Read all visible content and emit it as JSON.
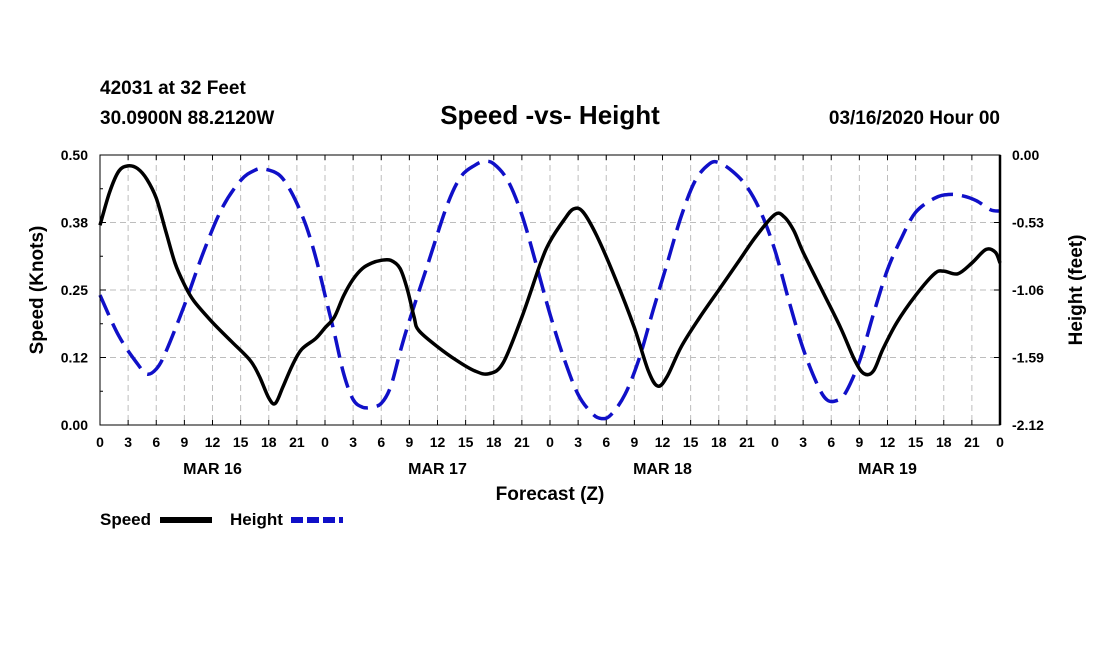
{
  "chart_data": {
    "type": "line",
    "title": "Speed -vs- Height",
    "station": "42031 at 32 Feet",
    "location": "30.0900N 88.2120W",
    "run": "03/16/2020 Hour 00",
    "xlabel": "Forecast (Z)",
    "ylabel_left": "Speed (Knots)",
    "ylabel_right": "Height (feet)",
    "x_unit": "forecast hours",
    "xlim": [
      0,
      96
    ],
    "ylim_left": [
      0,
      0.5
    ],
    "ylim_right": [
      -2.12,
      0
    ],
    "yticks_left": [
      "0.00",
      "0.12",
      "0.25",
      "0.38",
      "0.50"
    ],
    "yticks_right": [
      "-2.12",
      "-1.59",
      "-1.06",
      "-0.53",
      "0.00"
    ],
    "xtick_labels": [
      "0",
      "3",
      "6",
      "9",
      "12",
      "15",
      "18",
      "21",
      "0",
      "3",
      "6",
      "9",
      "12",
      "15",
      "18",
      "21",
      "0",
      "3",
      "6",
      "9",
      "12",
      "15",
      "18",
      "21",
      "0",
      "3",
      "6",
      "9",
      "12",
      "15",
      "18",
      "21",
      "0"
    ],
    "day_labels": [
      {
        "label": "MAR 16",
        "hour": 12
      },
      {
        "label": "MAR 17",
        "hour": 36
      },
      {
        "label": "MAR 18",
        "hour": 60
      },
      {
        "label": "MAR 19",
        "hour": 84
      }
    ],
    "grid": true,
    "legend_position": "bottom-left",
    "series": [
      {
        "name": "Speed",
        "axis": "left",
        "color": "#000000",
        "style": "solid",
        "points": [
          [
            0,
            0.37
          ],
          [
            1,
            0.43
          ],
          [
            2,
            0.47
          ],
          [
            3,
            0.48
          ],
          [
            4,
            0.475
          ],
          [
            5,
            0.455
          ],
          [
            6,
            0.42
          ],
          [
            7,
            0.36
          ],
          [
            8,
            0.3
          ],
          [
            9,
            0.26
          ],
          [
            10,
            0.23
          ],
          [
            12,
            0.19
          ],
          [
            14,
            0.155
          ],
          [
            16,
            0.12
          ],
          [
            17,
            0.09
          ],
          [
            18,
            0.05
          ],
          [
            18.7,
            0.04
          ],
          [
            19.5,
            0.07
          ],
          [
            20.5,
            0.11
          ],
          [
            21.5,
            0.14
          ],
          [
            23,
            0.16
          ],
          [
            24,
            0.18
          ],
          [
            25,
            0.2
          ],
          [
            26,
            0.24
          ],
          [
            27,
            0.27
          ],
          [
            28,
            0.29
          ],
          [
            29,
            0.3
          ],
          [
            30,
            0.305
          ],
          [
            31,
            0.305
          ],
          [
            32,
            0.29
          ],
          [
            32.8,
            0.25
          ],
          [
            33.5,
            0.2
          ],
          [
            34,
            0.175
          ],
          [
            36,
            0.145
          ],
          [
            38,
            0.12
          ],
          [
            40,
            0.1
          ],
          [
            41.5,
            0.095
          ],
          [
            43,
            0.115
          ],
          [
            45,
            0.2
          ],
          [
            47,
            0.3
          ],
          [
            48,
            0.34
          ],
          [
            49.5,
            0.38
          ],
          [
            50.5,
            0.4
          ],
          [
            51.5,
            0.395
          ],
          [
            53,
            0.35
          ],
          [
            55,
            0.27
          ],
          [
            57,
            0.18
          ],
          [
            58.5,
            0.1
          ],
          [
            59.5,
            0.072
          ],
          [
            60.5,
            0.09
          ],
          [
            62,
            0.145
          ],
          [
            64,
            0.2
          ],
          [
            66,
            0.25
          ],
          [
            68,
            0.3
          ],
          [
            70,
            0.35
          ],
          [
            72,
            0.39
          ],
          [
            73,
            0.385
          ],
          [
            74,
            0.36
          ],
          [
            75,
            0.32
          ],
          [
            77,
            0.25
          ],
          [
            79,
            0.18
          ],
          [
            80.5,
            0.12
          ],
          [
            81.5,
            0.095
          ],
          [
            82.5,
            0.1
          ],
          [
            83.5,
            0.14
          ],
          [
            85,
            0.19
          ],
          [
            87,
            0.24
          ],
          [
            89,
            0.28
          ],
          [
            90,
            0.285
          ],
          [
            91.5,
            0.28
          ],
          [
            93,
            0.3
          ],
          [
            94.5,
            0.325
          ],
          [
            95.5,
            0.32
          ],
          [
            96,
            0.3
          ]
        ]
      },
      {
        "name": "Height",
        "axis": "right",
        "color": "#1010c8",
        "style": "dashed",
        "points": [
          [
            0,
            -1.1
          ],
          [
            2,
            -1.42
          ],
          [
            4,
            -1.64
          ],
          [
            5,
            -1.72
          ],
          [
            6,
            -1.68
          ],
          [
            7,
            -1.55
          ],
          [
            9,
            -1.18
          ],
          [
            11,
            -0.77
          ],
          [
            13,
            -0.42
          ],
          [
            15,
            -0.2
          ],
          [
            16.5,
            -0.12
          ],
          [
            17.5,
            -0.11
          ],
          [
            19,
            -0.15
          ],
          [
            20,
            -0.24
          ],
          [
            21,
            -0.38
          ],
          [
            22,
            -0.56
          ],
          [
            23,
            -0.8
          ],
          [
            24,
            -1.1
          ],
          [
            25,
            -1.4
          ],
          [
            26,
            -1.72
          ],
          [
            27,
            -1.92
          ],
          [
            28,
            -1.98
          ],
          [
            29,
            -1.98
          ],
          [
            30,
            -1.95
          ],
          [
            31,
            -1.82
          ],
          [
            32,
            -1.55
          ],
          [
            33,
            -1.3
          ],
          [
            35,
            -0.85
          ],
          [
            37,
            -0.4
          ],
          [
            38.5,
            -0.17
          ],
          [
            40,
            -0.08
          ],
          [
            41,
            -0.05
          ],
          [
            42,
            -0.07
          ],
          [
            43.5,
            -0.2
          ],
          [
            45,
            -0.47
          ],
          [
            46.5,
            -0.85
          ],
          [
            48,
            -1.25
          ],
          [
            49.5,
            -1.6
          ],
          [
            51,
            -1.88
          ],
          [
            52.5,
            -2.03
          ],
          [
            53.5,
            -2.07
          ],
          [
            54.5,
            -2.04
          ],
          [
            56,
            -1.88
          ],
          [
            57.5,
            -1.6
          ],
          [
            59,
            -1.22
          ],
          [
            60.5,
            -0.85
          ],
          [
            62,
            -0.48
          ],
          [
            63.5,
            -0.2
          ],
          [
            65,
            -0.07
          ],
          [
            66,
            -0.06
          ],
          [
            67.5,
            -0.13
          ],
          [
            69,
            -0.25
          ],
          [
            70.5,
            -0.45
          ],
          [
            72,
            -0.75
          ],
          [
            73.5,
            -1.15
          ],
          [
            75,
            -1.52
          ],
          [
            76.5,
            -1.8
          ],
          [
            77.5,
            -1.92
          ],
          [
            78.5,
            -1.93
          ],
          [
            79.5,
            -1.87
          ],
          [
            81,
            -1.62
          ],
          [
            82.5,
            -1.25
          ],
          [
            84,
            -0.9
          ],
          [
            85.5,
            -0.65
          ],
          [
            87,
            -0.45
          ],
          [
            89,
            -0.34
          ],
          [
            90.5,
            -0.31
          ],
          [
            92,
            -0.32
          ],
          [
            93.5,
            -0.36
          ],
          [
            95,
            -0.43
          ],
          [
            96,
            -0.44
          ]
        ]
      }
    ]
  }
}
